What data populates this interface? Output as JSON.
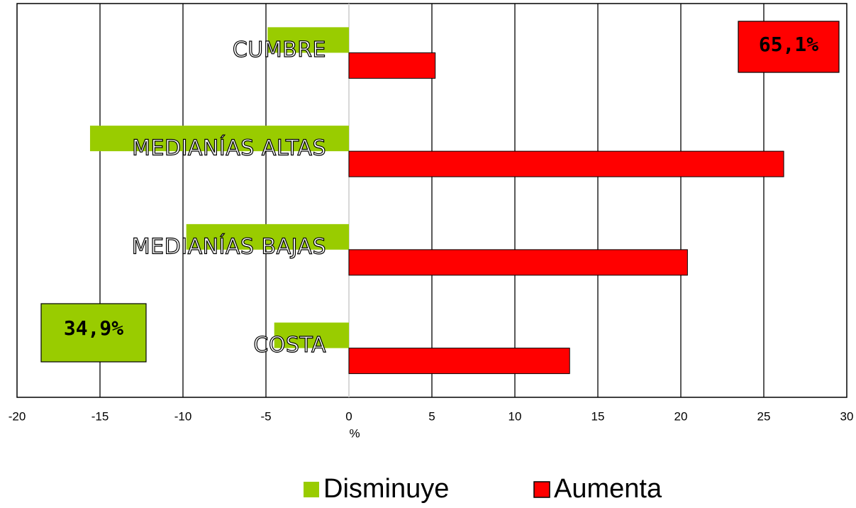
{
  "chart_data": {
    "type": "bar",
    "orientation": "horizontal",
    "categories": [
      "CUMBRE",
      "MEDIANÍAS ALTAS",
      "MEDIANÍAS BAJAS",
      "COSTA"
    ],
    "series": [
      {
        "name": "Disminuye",
        "color": "#99cc00",
        "values": [
          -4.9,
          -15.6,
          -9.8,
          -4.5
        ]
      },
      {
        "name": "Aumenta",
        "color": "#ff0000",
        "values": [
          5.2,
          26.2,
          20.4,
          13.3
        ]
      }
    ],
    "xlabel": "%",
    "xlim": [
      -20,
      30
    ],
    "xticks": [
      -20,
      -15,
      -10,
      -5,
      0,
      5,
      10,
      15,
      20,
      25,
      30
    ],
    "grid": true,
    "legend": "bottom",
    "annotations": [
      {
        "text": "65,1%",
        "color": "#ff0000"
      },
      {
        "text": "34,9%",
        "color": "#99cc00"
      }
    ]
  }
}
